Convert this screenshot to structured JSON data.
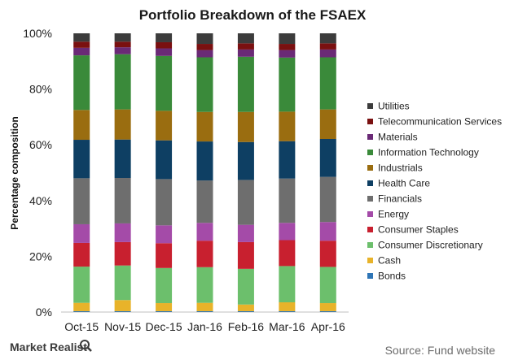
{
  "chart_data": {
    "type": "bar",
    "stacked": true,
    "title": "Portfolio Breakdown of the FSAEX",
    "xlabel": "",
    "ylabel": "Percentage composition",
    "ylim": [
      0,
      100
    ],
    "yticks": [
      "0%",
      "20%",
      "40%",
      "60%",
      "80%",
      "100%"
    ],
    "categories": [
      "Oct-15",
      "Nov-15",
      "Dec-15",
      "Jan-16",
      "Feb-16",
      "Mar-16",
      "Apr-16"
    ],
    "legend_position": "right",
    "grid": false,
    "series": [
      {
        "name": "Bonds",
        "color": "#2e75b6",
        "values": [
          0.3,
          0.3,
          0.3,
          0.3,
          0.3,
          0.3,
          0.3
        ]
      },
      {
        "name": "Cash",
        "color": "#e8b32a",
        "values": [
          3.0,
          4.0,
          2.9,
          3.0,
          2.4,
          3.2,
          2.9
        ]
      },
      {
        "name": "Consumer Discretionary",
        "color": "#6cbf6c",
        "values": [
          13.0,
          12.4,
          12.6,
          12.8,
          12.8,
          13.0,
          13.0
        ]
      },
      {
        "name": "Consumer Staples",
        "color": "#c8202f",
        "values": [
          8.5,
          8.4,
          8.9,
          9.5,
          9.6,
          9.3,
          9.4
        ]
      },
      {
        "name": "Energy",
        "color": "#a44ba8",
        "values": [
          6.7,
          6.7,
          6.4,
          6.4,
          6.2,
          6.2,
          6.7
        ]
      },
      {
        "name": "Financials",
        "color": "#6e6e6e",
        "values": [
          16.5,
          16.3,
          16.6,
          15.2,
          16.1,
          15.9,
          16.2
        ]
      },
      {
        "name": "Health Care",
        "color": "#0e3f63",
        "values": [
          13.8,
          13.8,
          13.9,
          14.0,
          13.6,
          13.4,
          13.6
        ]
      },
      {
        "name": "Industrials",
        "color": "#9a6d10",
        "values": [
          10.7,
          10.8,
          10.6,
          10.6,
          10.8,
          10.6,
          10.6
        ]
      },
      {
        "name": "Information Technology",
        "color": "#3a8a3a",
        "values": [
          19.6,
          19.8,
          19.7,
          19.6,
          19.8,
          19.4,
          18.7
        ]
      },
      {
        "name": "Materials",
        "color": "#6a2a76",
        "values": [
          2.7,
          2.5,
          2.7,
          2.6,
          2.6,
          2.7,
          2.8
        ]
      },
      {
        "name": "Telecommunication Services",
        "color": "#7a1010",
        "values": [
          2.2,
          2.0,
          2.2,
          2.2,
          2.2,
          2.2,
          2.2
        ]
      },
      {
        "name": "Utilities",
        "color": "#3c3c3c",
        "values": [
          3.0,
          3.0,
          3.2,
          3.8,
          3.6,
          3.8,
          3.6
        ]
      }
    ]
  },
  "footer": {
    "brand": "Market Realist",
    "source": "Source: Fund website"
  }
}
